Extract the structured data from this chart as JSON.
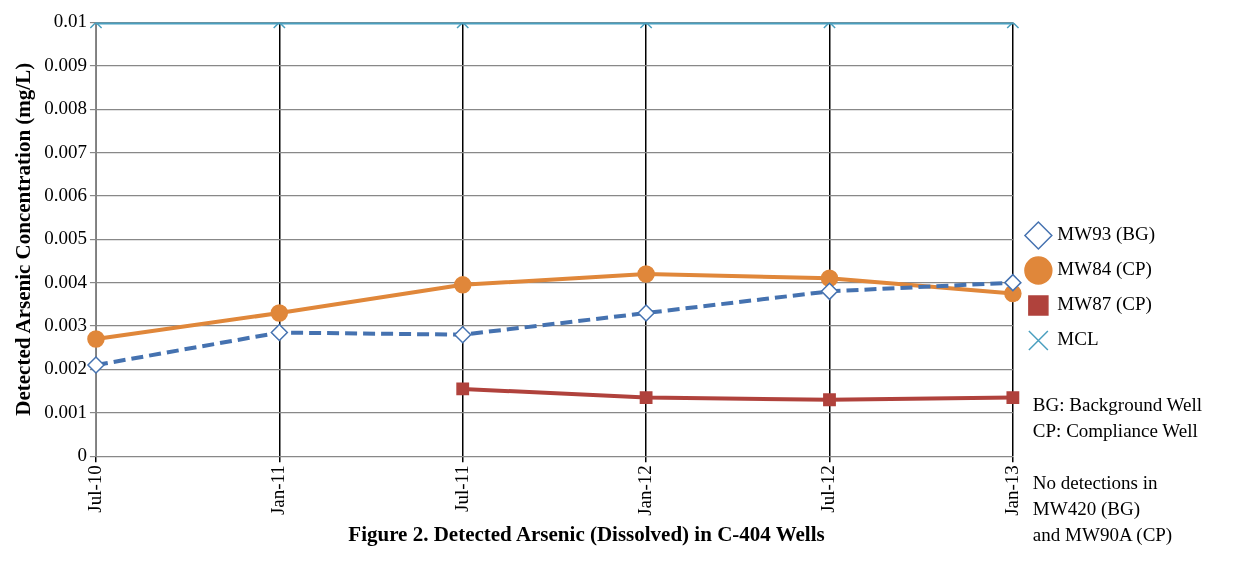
{
  "chart_data": {
    "type": "line",
    "title": "Figure 2. Detected Arsenic (Dissolved) in C-404 Wells",
    "ylabel": "Detected Arsenic Concentration (mg/L)",
    "categories": [
      "Jul-10",
      "Jan-11",
      "Jul-11",
      "Jan-12",
      "Jul-12",
      "Jan-13"
    ],
    "series": [
      {
        "name": "MW93 (BG)",
        "color": "#4572b0",
        "marker": "diamond",
        "line_style": "dashed",
        "values": [
          0.0021,
          0.00285,
          0.0028,
          0.0033,
          0.0038,
          0.004
        ]
      },
      {
        "name": "MW84 (CP)",
        "color": "#e0873a",
        "marker": "circle",
        "line_style": "solid",
        "values": [
          0.0027,
          0.0033,
          0.00395,
          0.0042,
          0.0041,
          0.00375
        ]
      },
      {
        "name": "MW87 (CP)",
        "color": "#b0423c",
        "marker": "square",
        "line_style": "solid",
        "values": [
          null,
          null,
          0.00155,
          0.00135,
          0.0013,
          0.00135
        ]
      },
      {
        "name": "MCL",
        "color": "#4a9fbf",
        "marker": "cross",
        "line_style": "solid",
        "values": [
          0.01,
          0.01,
          0.01,
          0.01,
          0.01,
          0.01
        ]
      }
    ],
    "ylim": [
      0,
      0.01
    ],
    "yticks": [
      0,
      0.001,
      0.002,
      0.003,
      0.004,
      0.005,
      0.006,
      0.007,
      0.008,
      0.009,
      0.01
    ],
    "grid": true,
    "legend": "right",
    "annotations": [
      "BG: Background Well\nCP: Compliance Well",
      "No detections in\nMW420 (BG)\nand MW90A (CP)"
    ]
  }
}
